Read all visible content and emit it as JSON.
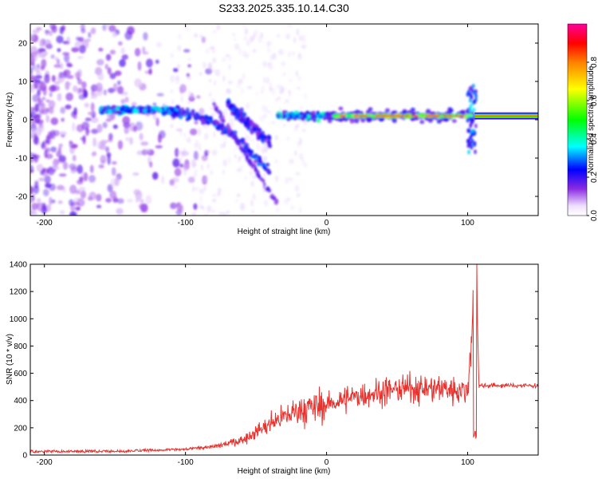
{
  "title": "S233.2025.335.10.14.C30",
  "chart_data": [
    {
      "type": "heatmap",
      "xlabel": "Height of straight line (km)",
      "ylabel": "Frequency (Hz)",
      "xlim": [
        -210,
        150
      ],
      "ylim": [
        -25,
        25
      ],
      "xticks": [
        -200,
        -100,
        0,
        100
      ],
      "yticks": [
        -20,
        -10,
        0,
        10,
        20
      ],
      "colorbar": {
        "label": "Normalized spectral amplitude",
        "range": [
          0,
          1
        ],
        "ticks": [
          0.0,
          0.2,
          0.4,
          0.6,
          0.8
        ],
        "tick_labels": [
          "0.0",
          "0.2",
          "0.4",
          "0.6",
          "0.8"
        ]
      },
      "features": [
        {
          "name": "steady line",
          "x_from": 105,
          "x_to": 150,
          "freq": 1.0,
          "amplitude": 0.85
        },
        {
          "name": "main band",
          "x_from": 0,
          "x_to": 100,
          "freq": 1.0,
          "amplitude": 0.6
        },
        {
          "name": "descending branch",
          "x_from": -110,
          "x_to": -40,
          "freq_from": 2,
          "freq_to": -15,
          "amplitude": 0.3
        }
      ]
    },
    {
      "type": "line",
      "xlabel": "Height of straight line (km)",
      "ylabel": "SNR (10 * v/v)",
      "xlim": [
        -210,
        150
      ],
      "ylim": [
        0,
        1400
      ],
      "xticks": [
        -200,
        -100,
        0,
        100
      ],
      "yticks": [
        0,
        200,
        400,
        600,
        800,
        1000,
        1200,
        1400
      ],
      "color": "#e8322e",
      "series_envelope": [
        {
          "x": -210,
          "y": 25
        },
        {
          "x": -150,
          "y": 25
        },
        {
          "x": -100,
          "y": 40
        },
        {
          "x": -80,
          "y": 60
        },
        {
          "x": -60,
          "y": 110
        },
        {
          "x": -40,
          "y": 230
        },
        {
          "x": -20,
          "y": 330
        },
        {
          "x": 0,
          "y": 370
        },
        {
          "x": 20,
          "y": 430
        },
        {
          "x": 40,
          "y": 470
        },
        {
          "x": 60,
          "y": 490
        },
        {
          "x": 80,
          "y": 490
        },
        {
          "x": 100,
          "y": 470
        },
        {
          "x": 106,
          "y": 1400
        },
        {
          "x": 108,
          "y": 510
        },
        {
          "x": 150,
          "y": 510
        }
      ]
    }
  ]
}
